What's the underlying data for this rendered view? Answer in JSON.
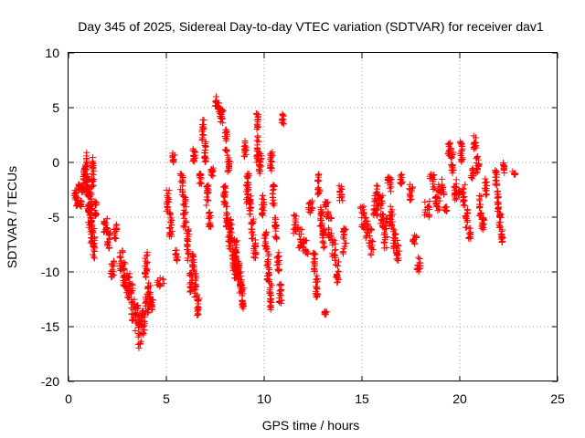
{
  "chart_data": {
    "type": "scatter",
    "title": "Day 345 of 2025, Sidereal Day-to-day VTEC variation (SDTVAR) for receiver dav1",
    "xlabel": "GPS time / hours",
    "ylabel": "SDTVAR / TECUs",
    "xlim": [
      0,
      25
    ],
    "ylim": [
      -20,
      10
    ],
    "xticks": [
      0,
      5,
      10,
      15,
      20,
      25
    ],
    "yticks": [
      -20,
      -15,
      -10,
      -5,
      0,
      5,
      10
    ],
    "grid": true,
    "marker": "+",
    "marker_color": "#ff0000",
    "series": [
      {
        "name": "SDTVAR",
        "clusters": [
          {
            "x0": 0.3,
            "x1": 0.75,
            "pts": [
              [
                -2.5,
                -3.5
              ],
              [
                -3.0,
                -4.0
              ],
              [
                -2.0,
                -2.5
              ],
              [
                -3.5,
                -4.2
              ],
              [
                -2.8,
                -1.8
              ]
            ]
          },
          {
            "x0": 0.75,
            "x1": 1.3,
            "pts": [
              [
                -2.0,
                -0.5
              ],
              [
                -3.0,
                1.5
              ],
              [
                -4.5,
                -1.0
              ],
              [
                -5.5,
                -2.0
              ],
              [
                -2.5,
                0.5
              ]
            ]
          },
          {
            "x0": 1.0,
            "x1": 1.45,
            "pts": [
              [
                -4.0,
                -6.0
              ],
              [
                -5.0,
                -7.5
              ],
              [
                -6.0,
                -9.0
              ],
              [
                -3.5,
                -5.0
              ]
            ]
          },
          {
            "x0": 1.8,
            "x1": 2.5,
            "pts": [
              [
                -5.0,
                -6.5
              ],
              [
                -6.0,
                -8.0
              ],
              [
                -9.0,
                -10.5
              ],
              [
                -5.5,
                -7.0
              ]
            ]
          },
          {
            "x0": 2.6,
            "x1": 3.3,
            "pts": [
              [
                -8.0,
                -10.0
              ],
              [
                -9.0,
                -11.5
              ],
              [
                -10.0,
                -12.5
              ],
              [
                -11.0,
                -12.0
              ]
            ]
          },
          {
            "x0": 3.2,
            "x1": 4.1,
            "pts": [
              [
                -12.5,
                -14.5
              ],
              [
                -13.0,
                -15.5
              ],
              [
                -14.0,
                -17.0
              ],
              [
                -13.5,
                -16.0
              ],
              [
                -12.0,
                -14.0
              ]
            ]
          },
          {
            "x0": 3.9,
            "x1": 4.35,
            "pts": [
              [
                -8.0,
                -10.5
              ],
              [
                -11.0,
                -13.0
              ],
              [
                -12.5,
                -13.5
              ]
            ]
          },
          {
            "x0": 4.5,
            "x1": 4.9,
            "pts": [
              [
                -10.5,
                -11.5
              ]
            ]
          },
          {
            "x0": 5.0,
            "x1": 5.6,
            "pts": [
              [
                -2.5,
                -4.5
              ],
              [
                -4.5,
                -7.0
              ],
              [
                0.0,
                1.0
              ],
              [
                -8.0,
                -9.0
              ]
            ]
          },
          {
            "x0": 5.7,
            "x1": 6.5,
            "pts": [
              [
                -1.0,
                -3.0
              ],
              [
                -3.0,
                -6.0
              ],
              [
                -6.0,
                -9.0
              ],
              [
                -10.0,
                -12.0
              ],
              [
                0.0,
                1.5
              ]
            ]
          },
          {
            "x0": 6.3,
            "x1": 6.8,
            "pts": [
              [
                -8.0,
                -10.0
              ],
              [
                -10.0,
                -12.5
              ],
              [
                -12.0,
                -14.0
              ],
              [
                -0.5,
                -2.0
              ]
            ]
          },
          {
            "x0": 6.8,
            "x1": 7.4,
            "pts": [
              [
                2.0,
                4.0
              ],
              [
                0.0,
                2.0
              ],
              [
                -2.0,
                -4.0
              ],
              [
                -4.5,
                -6.0
              ],
              [
                -0.5,
                -1.5
              ]
            ]
          },
          {
            "x0": 7.5,
            "x1": 8.3,
            "pts": [
              [
                5.0,
                6.0
              ],
              [
                4.0,
                5.5
              ],
              [
                3.5,
                5.0
              ],
              [
                -2.0,
                -4.0
              ],
              [
                -4.0,
                -6.0
              ],
              [
                -6.0,
                -8.0
              ]
            ]
          },
          {
            "x0": 8.0,
            "x1": 8.6,
            "pts": [
              [
                1.0,
                3.0
              ],
              [
                -1.0,
                1.0
              ],
              [
                -5.0,
                -7.0
              ],
              [
                -7.0,
                -10.0
              ],
              [
                -9.0,
                -11.0
              ]
            ]
          },
          {
            "x0": 8.5,
            "x1": 9.2,
            "pts": [
              [
                -7.0,
                -9.0
              ],
              [
                -9.0,
                -11.0
              ],
              [
                -10.0,
                -12.0
              ],
              [
                -11.0,
                -13.5
              ],
              [
                0.5,
                2.0
              ],
              [
                -2.0,
                -4.0
              ]
            ]
          },
          {
            "x0": 9.1,
            "x1": 9.7,
            "pts": [
              [
                -1.0,
                -2.0
              ],
              [
                -3.0,
                -5.0
              ],
              [
                -5.0,
                -7.0
              ],
              [
                -7.0,
                -9.0
              ],
              [
                3.0,
                4.5
              ]
            ]
          },
          {
            "x0": 9.6,
            "x1": 10.4,
            "pts": [
              [
                0.0,
                2.5
              ],
              [
                -1.0,
                1.0
              ],
              [
                -3.0,
                -5.0
              ],
              [
                -6.0,
                -8.0
              ],
              [
                -8.0,
                -11.0
              ],
              [
                -11.0,
                -13.5
              ]
            ]
          },
          {
            "x0": 10.3,
            "x1": 11.0,
            "pts": [
              [
                -1.0,
                1.0
              ],
              [
                -2.0,
                -4.0
              ],
              [
                -5.0,
                -7.0
              ],
              [
                -8.0,
                -10.0
              ],
              [
                -11.0,
                -13.0
              ],
              [
                3.5,
                4.5
              ]
            ]
          },
          {
            "x0": 11.5,
            "x1": 12.5,
            "pts": [
              [
                -4.5,
                -6.5
              ],
              [
                -6.0,
                -8.0
              ],
              [
                -7.0,
                -8.5
              ],
              [
                -3.5,
                -5.0
              ]
            ]
          },
          {
            "x0": 12.5,
            "x1": 13.2,
            "pts": [
              [
                -8.0,
                -10.0
              ],
              [
                -10.0,
                -12.5
              ],
              [
                -1.0,
                -3.0
              ],
              [
                -4.0,
                -6.0
              ],
              [
                -6.0,
                -8.0
              ],
              [
                -13.5,
                -14.0
              ]
            ]
          },
          {
            "x0": 13.1,
            "x1": 14.2,
            "pts": [
              [
                -3.5,
                -5.0
              ],
              [
                -5.0,
                -7.0
              ],
              [
                -7.0,
                -9.0
              ],
              [
                -9.0,
                -11.0
              ],
              [
                -2.0,
                -3.5
              ],
              [
                -6.0,
                -8.5
              ]
            ]
          },
          {
            "x0": 14.9,
            "x1": 15.8,
            "pts": [
              [
                -4.0,
                -6.0
              ],
              [
                -5.0,
                -7.0
              ],
              [
                -6.0,
                -8.5
              ],
              [
                -3.0,
                -5.0
              ]
            ]
          },
          {
            "x0": 15.7,
            "x1": 16.5,
            "pts": [
              [
                -2.0,
                -4.0
              ],
              [
                -3.0,
                -6.0
              ],
              [
                -5.0,
                -8.0
              ],
              [
                -1.0,
                -3.0
              ]
            ]
          },
          {
            "x0": 16.4,
            "x1": 17.1,
            "pts": [
              [
                -4.0,
                -6.0
              ],
              [
                -6.0,
                -8.0
              ],
              [
                -7.0,
                -9.0
              ],
              [
                -1.0,
                -2.0
              ]
            ]
          },
          {
            "x0": 17.4,
            "x1": 18.0,
            "pts": [
              [
                -2.0,
                -3.5
              ],
              [
                -6.5,
                -7.5
              ],
              [
                -8.5,
                -10.0
              ]
            ]
          },
          {
            "x0": 18.2,
            "x1": 19.0,
            "pts": [
              [
                -3.5,
                -5.0
              ],
              [
                -1.0,
                -2.5
              ],
              [
                -2.0,
                -4.5
              ]
            ]
          },
          {
            "x0": 19.0,
            "x1": 19.4,
            "pts": [
              [
                -1.5,
                -3.0
              ],
              [
                -4.0,
                -4.5
              ]
            ]
          },
          {
            "x0": 19.4,
            "x1": 20.0,
            "pts": [
              [
                0.5,
                2.0
              ],
              [
                -1.0,
                1.0
              ],
              [
                -1.5,
                -3.5
              ],
              [
                -2.5,
                -3.0
              ]
            ]
          },
          {
            "x0": 20.0,
            "x1": 20.7,
            "pts": [
              [
                0.0,
                2.0
              ],
              [
                -2.0,
                -4.0
              ],
              [
                -4.0,
                -6.0
              ],
              [
                -6.0,
                -7.0
              ],
              [
                -0.5,
                -1.5
              ]
            ]
          },
          {
            "x0": 20.7,
            "x1": 21.4,
            "pts": [
              [
                1.0,
                2.5
              ],
              [
                -1.0,
                1.0
              ],
              [
                -3.0,
                -5.0
              ],
              [
                -5.0,
                -6.5
              ],
              [
                -1.5,
                -3.0
              ]
            ]
          },
          {
            "x0": 21.8,
            "x1": 22.3,
            "pts": [
              [
                -0.5,
                -2.5
              ],
              [
                -2.5,
                -4.5
              ],
              [
                -4.5,
                -6.0
              ],
              [
                -6.0,
                -7.5
              ],
              [
                0.0,
                -1.0
              ]
            ]
          },
          {
            "x0": 22.7,
            "x1": 22.9,
            "pts": [
              [
                -0.8,
                -1.2
              ]
            ]
          }
        ]
      }
    ]
  }
}
